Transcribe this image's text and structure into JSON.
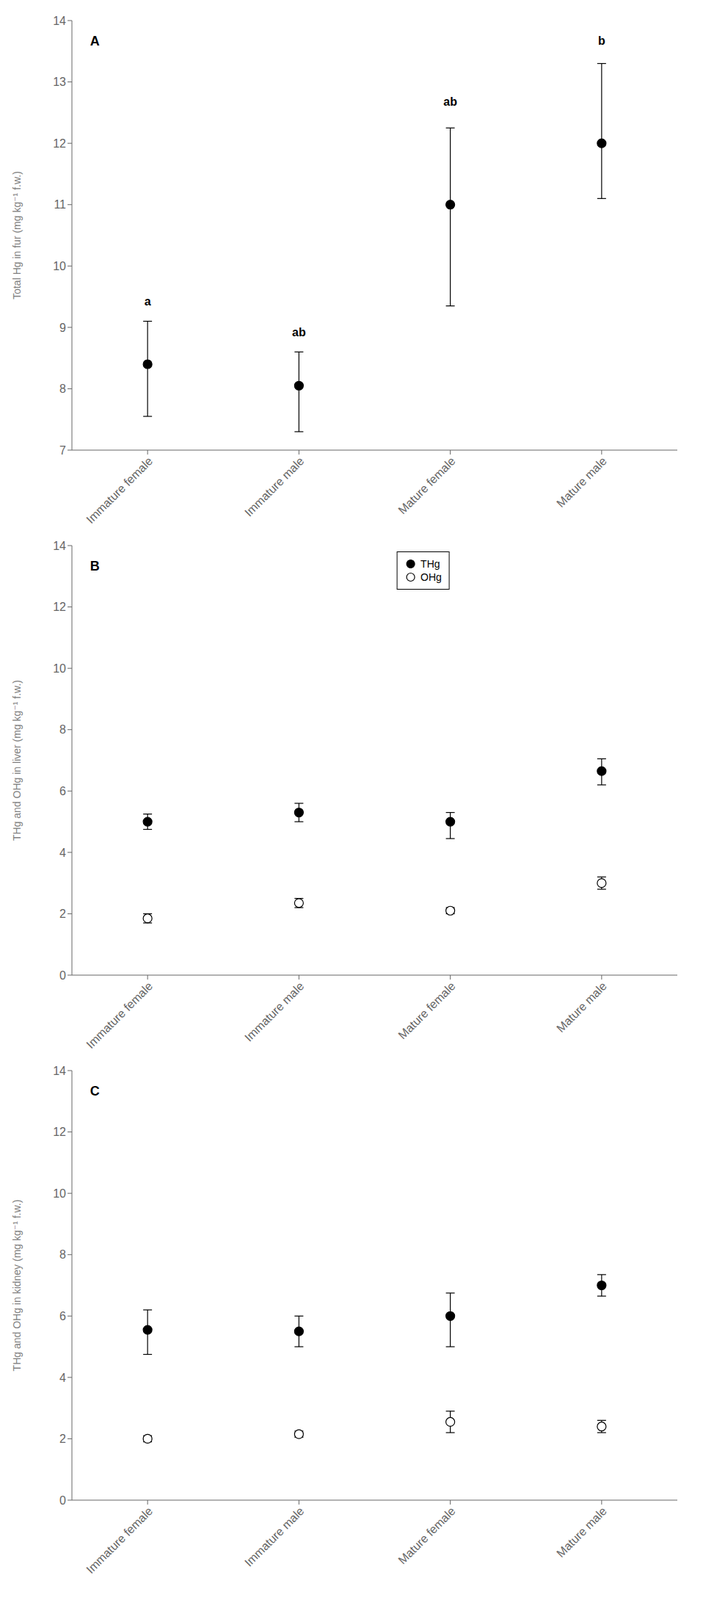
{
  "chart_data": [
    {
      "type": "scatter",
      "title": "A",
      "categories": [
        "Immature female",
        "Immature male",
        "Mature female",
        "Mature male"
      ],
      "ylabel": "Total Hg in fur (mg kg⁻¹ f.w.)",
      "ylim": [
        7,
        14
      ],
      "yticks": [
        7,
        8,
        9,
        10,
        11,
        12,
        13,
        14
      ],
      "series": [
        {
          "color": "#000000",
          "marker": "filled_circle",
          "values": [
            8.4,
            8.05,
            11.0,
            12.0
          ],
          "error_upper": [
            0.7,
            0.55,
            1.25,
            1.3
          ],
          "error_lower": [
            0.85,
            0.75,
            1.65,
            0.9
          ]
        }
      ],
      "annotations": [
        {
          "category": "Immature female",
          "y": 9.3,
          "text": "a"
        },
        {
          "category": "Immature male",
          "y": 8.8,
          "text": "ab"
        },
        {
          "category": "Mature female",
          "y": 12.55,
          "text": "ab"
        },
        {
          "category": "Mature male",
          "y": 13.55,
          "text": "b"
        }
      ]
    },
    {
      "type": "scatter",
      "title": "B",
      "categories": [
        "Immature female",
        "Immature male",
        "Mature female",
        "Mature male"
      ],
      "ylabel": "THg and OHg in liver (mg kg⁻¹ f.w.)",
      "ylim": [
        0,
        14
      ],
      "yticks": [
        0,
        2,
        4,
        6,
        8,
        10,
        12,
        14
      ],
      "legend": "top",
      "series": [
        {
          "name": "THg",
          "color": "#000000",
          "marker": "filled_circle",
          "values": [
            5.0,
            5.3,
            5.0,
            6.65
          ],
          "error_upper": [
            0.25,
            0.3,
            0.3,
            0.4
          ],
          "error_lower": [
            0.25,
            0.3,
            0.55,
            0.45
          ]
        },
        {
          "name": "OHg",
          "color": "#000000",
          "marker": "open_circle",
          "values": [
            1.85,
            2.35,
            2.1,
            3.0
          ],
          "error_upper": [
            0.15,
            0.15,
            0.1,
            0.2
          ],
          "error_lower": [
            0.15,
            0.15,
            0.1,
            0.2
          ]
        }
      ]
    },
    {
      "type": "scatter",
      "title": "C",
      "categories": [
        "Immature female",
        "Immature male",
        "Mature female",
        "Mature male"
      ],
      "ylabel": "THg and OHg in kidney (mg kg⁻¹ f.w.)",
      "ylim": [
        0,
        14
      ],
      "yticks": [
        0,
        2,
        4,
        6,
        8,
        10,
        12,
        14
      ],
      "series": [
        {
          "name": "THg",
          "color": "#000000",
          "marker": "filled_circle",
          "values": [
            5.55,
            5.5,
            6.0,
            7.0
          ],
          "error_upper": [
            0.65,
            0.5,
            0.75,
            0.35
          ],
          "error_lower": [
            0.8,
            0.5,
            1.0,
            0.35
          ]
        },
        {
          "name": "OHg",
          "color": "#000000",
          "marker": "open_circle",
          "values": [
            2.0,
            2.15,
            2.55,
            2.4
          ],
          "error_upper": [
            0.1,
            0.1,
            0.35,
            0.2
          ],
          "error_lower": [
            0.1,
            0.1,
            0.35,
            0.2
          ]
        }
      ]
    }
  ]
}
